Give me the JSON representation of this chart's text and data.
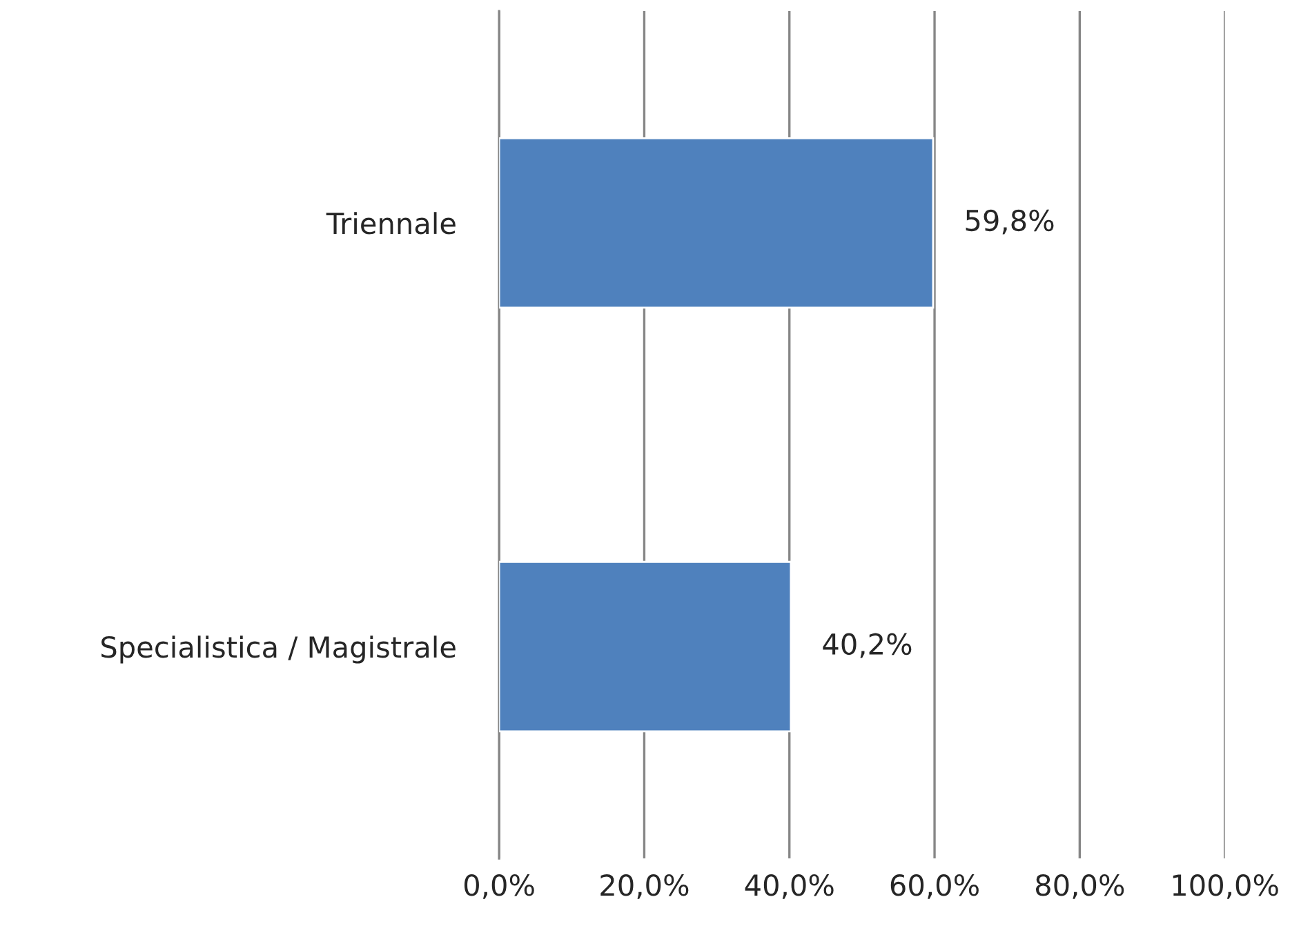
{
  "chart_data": {
    "type": "bar",
    "orientation": "horizontal",
    "categories": [
      "Triennale",
      "Specialistica / Magistrale"
    ],
    "values": [
      59.8,
      40.2
    ],
    "color": "#4f81bd",
    "value_labels": [
      "59,8%",
      "40,2%"
    ],
    "xlim": [
      0,
      100
    ],
    "xticks": [
      {
        "value": 0,
        "label": "0,0%"
      },
      {
        "value": 20,
        "label": "20,0%"
      },
      {
        "value": 40,
        "label": "40,0%"
      },
      {
        "value": 60,
        "label": "60,0%"
      },
      {
        "value": 80,
        "label": "80,0%"
      },
      {
        "value": 100,
        "label": "100,0%"
      }
    ],
    "grid": "x",
    "legend": false
  }
}
